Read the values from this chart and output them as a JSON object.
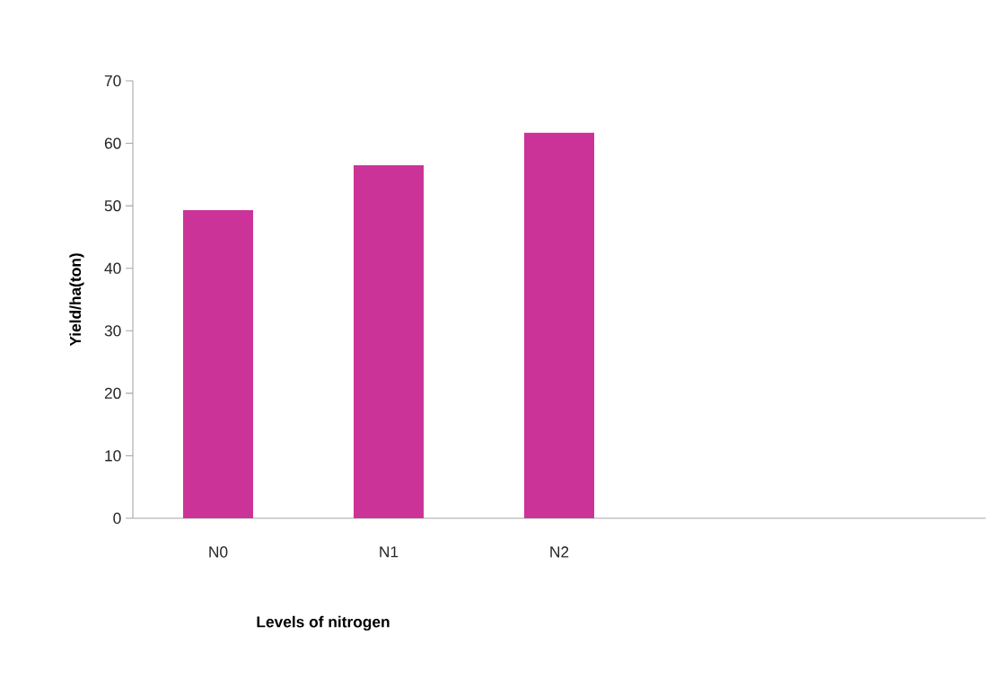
{
  "chart_data": {
    "type": "bar",
    "xlabel": "Levels of nitrogen",
    "ylabel": "Yield/ha(ton)",
    "categories": [
      "N0",
      "N1",
      "N2",
      null,
      null
    ],
    "values": [
      49.3,
      56.5,
      61.7,
      null,
      null
    ],
    "color": "#cc3399",
    "ylim": [
      0,
      70
    ],
    "yticks": [
      0,
      10,
      20,
      30,
      40,
      50,
      60,
      70
    ],
    "grid": false
  }
}
